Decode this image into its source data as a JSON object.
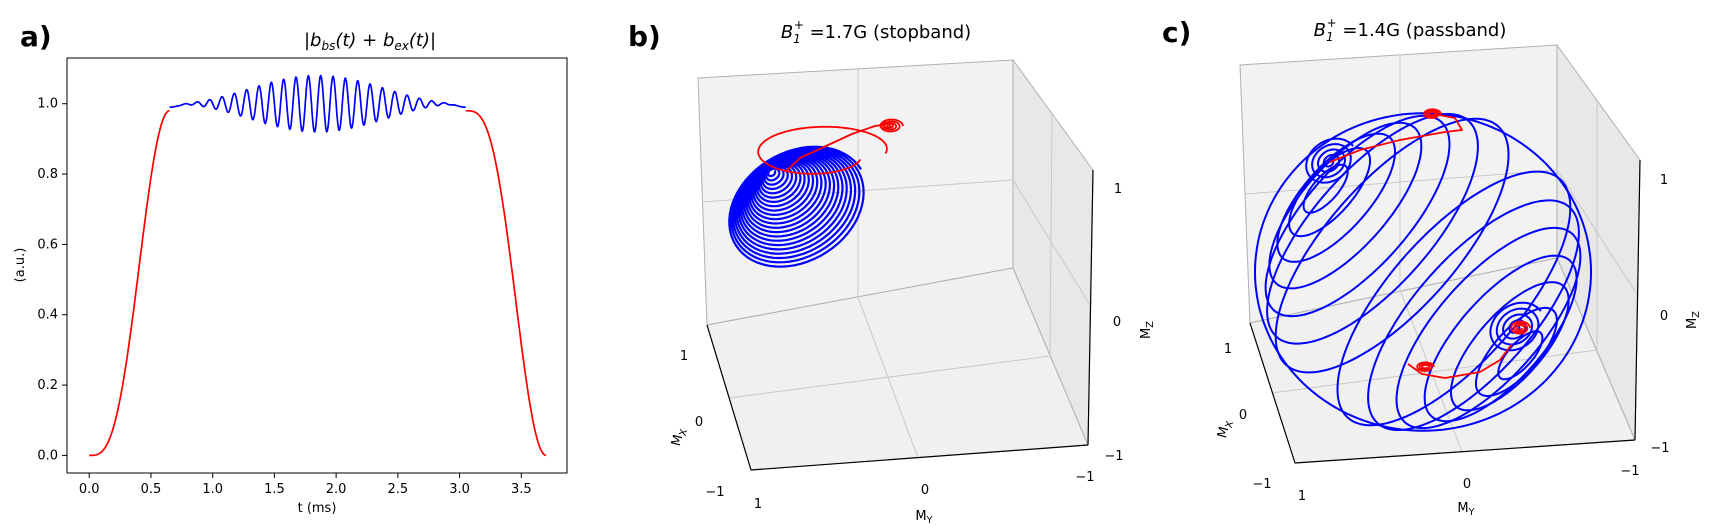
{
  "panels": [
    {
      "label": "a)"
    },
    {
      "label": "b)"
    },
    {
      "label": "c)"
    }
  ],
  "chart_data": [
    {
      "type": "line",
      "title": "|b_bs(t) + b_ex(t)|",
      "title_parts": {
        "prefix": "|b",
        "sub1": "bs",
        "mid": "(t) + b",
        "sub2": "ex",
        "suffix": "(t)|"
      },
      "xlabel": "t (ms)",
      "ylabel": "(a.u.)",
      "xlim": [
        -0.18,
        3.87
      ],
      "ylim": [
        -0.05,
        1.13
      ],
      "xticks": [
        "0.0",
        "0.5",
        "1.0",
        "1.5",
        "2.0",
        "2.5",
        "3.0",
        "3.5"
      ],
      "yticks": [
        "0.0",
        "0.2",
        "0.4",
        "0.6",
        "0.8",
        "1.0"
      ],
      "series": [
        {
          "color": "#ff0000",
          "segment": "rise",
          "x": [
            0,
            0.1,
            0.2,
            0.3,
            0.4,
            0.5,
            0.55,
            0.6,
            0.65
          ],
          "y": [
            0,
            0.01,
            0.05,
            0.18,
            0.45,
            0.78,
            0.9,
            0.96,
            0.98
          ]
        },
        {
          "color": "#0000ff",
          "segment": "plateau",
          "x_start": 0.65,
          "x_end": 3.05,
          "mean": 1.0,
          "max_amplitude": 0.08,
          "cycles": 24
        },
        {
          "color": "#ff0000",
          "segment": "fall",
          "x": [
            3.05,
            3.1,
            3.15,
            3.2,
            3.3,
            3.4,
            3.5,
            3.6,
            3.7
          ],
          "y": [
            0.98,
            0.96,
            0.9,
            0.78,
            0.45,
            0.18,
            0.05,
            0.01,
            0
          ]
        }
      ]
    },
    {
      "type": "3d-line",
      "title": "B1+ =1.7G (stopband)",
      "title_parts": {
        "base": "B",
        "sub": "1",
        "sup": "+",
        "rest": " =1.7G (stopband)"
      },
      "xlabel": "M_X",
      "ylabel": "M_Y",
      "zlabel": "M_Z",
      "xticks": [
        "1",
        "0",
        "−1"
      ],
      "yticks": [
        "1",
        "0",
        "−1"
      ],
      "zticks": [
        "1",
        "0",
        "−1"
      ],
      "series_colors": [
        "#0000ff",
        "#ff0000"
      ]
    },
    {
      "type": "3d-line",
      "title": "B1+ =1.4G (passband)",
      "title_parts": {
        "base": "B",
        "sub": "1",
        "sup": "+",
        "rest": " =1.4G (passband)"
      },
      "xlabel": "M_X",
      "ylabel": "M_Y",
      "zlabel": "M_Z",
      "xticks": [
        "1",
        "0",
        "−1"
      ],
      "yticks": [
        "1",
        "0",
        "−1"
      ],
      "zticks": [
        "1",
        "0",
        "−1"
      ],
      "series_colors": [
        "#0000ff",
        "#ff0000"
      ]
    }
  ]
}
